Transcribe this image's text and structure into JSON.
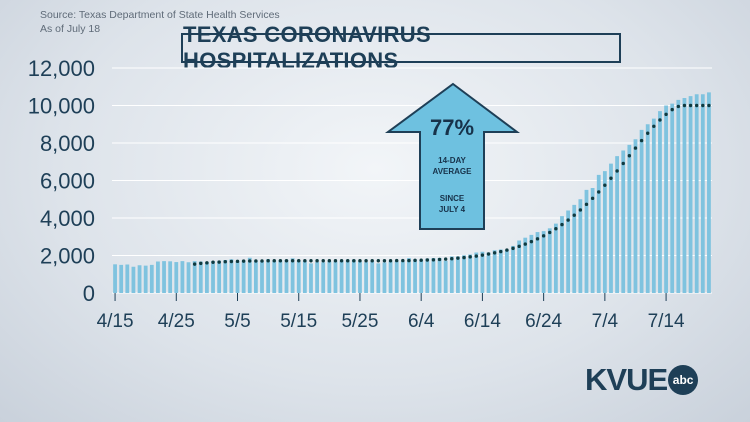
{
  "source": {
    "line1": "Source: Texas Department of State Health Services",
    "line2": "As of July 18"
  },
  "title": "TEXAS CORONAVIRUS HOSPITALIZATIONS",
  "annotation": {
    "percent": "77%",
    "line1": "14-DAY",
    "line2": "AVERAGE",
    "line3": "SINCE",
    "line4": "JULY 4"
  },
  "logo": {
    "text": "KVUE",
    "badge": "abc"
  },
  "colors": {
    "bar": "#7fc3df",
    "avg": "#0f3a40",
    "text": "#1e3f57",
    "arrow": "#6ec1e0",
    "arrow_stroke": "#1e3f57"
  },
  "chart_data": {
    "type": "bar",
    "ylim": [
      0,
      12000
    ],
    "yticks": [
      "0",
      "2,000",
      "4,000",
      "6,000",
      "8,000",
      "10,000",
      "12,000"
    ],
    "xtick_labels": [
      "4/15",
      "4/25",
      "5/5",
      "5/15",
      "5/25",
      "6/4",
      "6/14",
      "6/24",
      "7/4",
      "7/14"
    ],
    "start_date": "4/15",
    "end_date": "7/18",
    "series": [
      {
        "name": "Hospitalizations",
        "values": [
          1530,
          1500,
          1520,
          1400,
          1480,
          1460,
          1500,
          1680,
          1700,
          1690,
          1650,
          1700,
          1640,
          1700,
          1680,
          1650,
          1700,
          1720,
          1760,
          1800,
          1690,
          1740,
          1880,
          1730,
          1700,
          1800,
          1720,
          1740,
          1770,
          1850,
          1750,
          1720,
          1580,
          1660,
          1640,
          1700,
          1690,
          1720,
          1770,
          1780,
          1690,
          1650,
          1700,
          1580,
          1630,
          1690,
          1700,
          1690,
          1860,
          1790,
          1760,
          1840,
          1860,
          1870,
          1720,
          1950,
          1950,
          2010,
          2050,
          2160,
          2200,
          2160,
          2280,
          2320,
          2300,
          2510,
          2800,
          2950,
          3100,
          3250,
          3300,
          3450,
          3700,
          4100,
          4400,
          4700,
          5000,
          5500,
          5600,
          6300,
          6500,
          6900,
          7300,
          7600,
          7900,
          8200,
          8700,
          9000,
          9300,
          9700,
          10000,
          10100,
          10300,
          10400,
          10500,
          10600,
          10600,
          10700
        ]
      },
      {
        "name": "14-day average",
        "start_index": 13,
        "values": [
          1540,
          1580,
          1610,
          1640,
          1650,
          1670,
          1680,
          1690,
          1700,
          1710,
          1710,
          1710,
          1720,
          1720,
          1720,
          1720,
          1720,
          1720,
          1720,
          1720,
          1720,
          1720,
          1720,
          1720,
          1720,
          1720,
          1720,
          1720,
          1720,
          1720,
          1720,
          1720,
          1720,
          1730,
          1730,
          1730,
          1740,
          1750,
          1760,
          1770,
          1790,
          1810,
          1830,
          1860,
          1890,
          1930,
          1970,
          2020,
          2080,
          2140,
          2210,
          2290,
          2380,
          2490,
          2610,
          2740,
          2890,
          3050,
          3230,
          3430,
          3650,
          3890,
          4150,
          4430,
          4730,
          5050,
          5390,
          5750,
          6120,
          6510,
          6910,
          7320,
          7730,
          8130,
          8520,
          8890,
          9230,
          9530,
          9780,
          9950,
          10000,
          10000,
          10000,
          10000,
          10000
        ]
      }
    ]
  }
}
